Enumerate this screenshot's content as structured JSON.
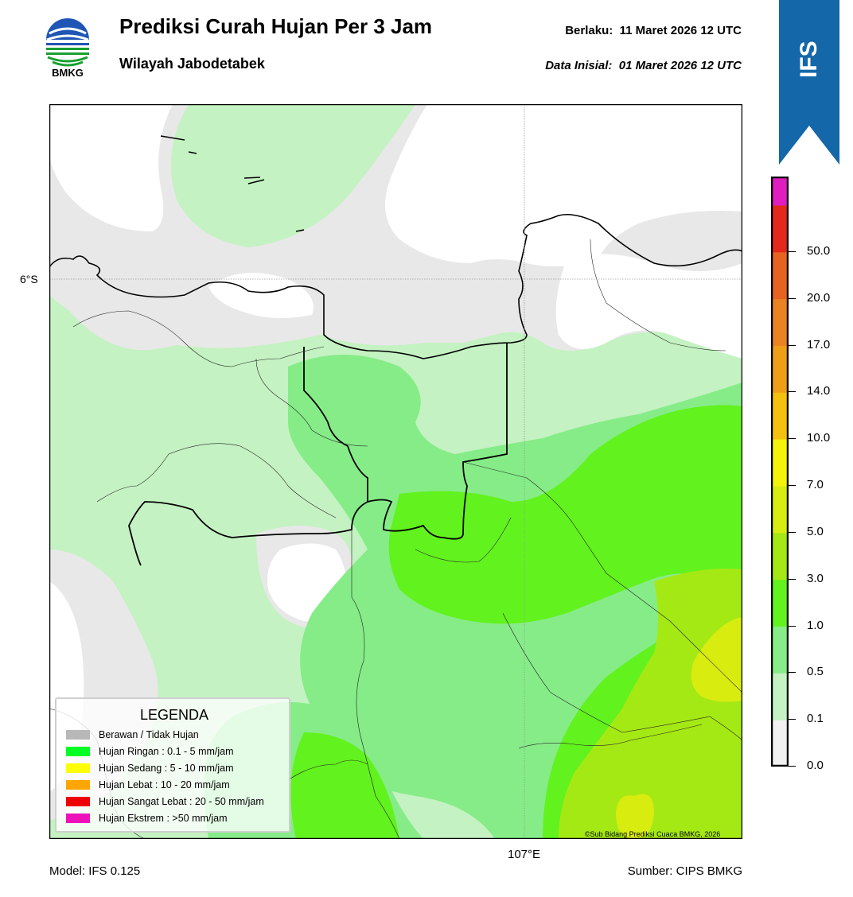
{
  "header": {
    "title": "Prediksi Curah Hujan Per 3 Jam",
    "region": "Wilayah Jabodetabek",
    "valid_label": "Berlaku:",
    "valid_value": "11 Maret 2026 12 UTC",
    "init_label": "Data Inisial:",
    "init_value": "01 Maret 2026 12 UTC"
  },
  "logo": {
    "icon": "bmkg-logo-icon",
    "text": "BMKG"
  },
  "model_badge": {
    "text": "IFS",
    "color": "#1467a8"
  },
  "map": {
    "lat_label": "6°S",
    "lon_label": "107°E",
    "copyright": "©Sub Bidang Prediksi Cuaca BMKG, 2026"
  },
  "colorbar": {
    "labels": [
      "0.0",
      "0.1",
      "0.5",
      "1.0",
      "3.0",
      "5.0",
      "7.0",
      "10.0",
      "14.0",
      "17.0",
      "20.0",
      "50.0"
    ],
    "colors": [
      "#f1f1f1",
      "#c4f2c2",
      "#86ec88",
      "#62f21e",
      "#a4e914",
      "#d8ec10",
      "#f4f40a",
      "#f4c20e",
      "#ef9e18",
      "#e98323",
      "#e76321",
      "#e4281c",
      "#e01dbe"
    ]
  },
  "legend": {
    "title": "LEGENDA",
    "items": [
      {
        "label": "Berawan / Tidak Hujan",
        "color": "#b8b8b8"
      },
      {
        "label": "Hujan Ringan : 0.1 - 5 mm/jam",
        "color": "#00ff22"
      },
      {
        "label": "Hujan Sedang : 5 - 10 mm/jam",
        "color": "#ffff00"
      },
      {
        "label": "Hujan Lebat : 10 - 20 mm/jam",
        "color": "#ffa500"
      },
      {
        "label": "Hujan Sangat Lebat : 20 - 50 mm/jam",
        "color": "#ee0000"
      },
      {
        "label": "Hujan Ekstrem : >50 mm/jam",
        "color": "#ee11bb"
      }
    ]
  },
  "footer": {
    "model": "Model: IFS 0.125",
    "source": "Sumber: CIPS BMKG"
  }
}
